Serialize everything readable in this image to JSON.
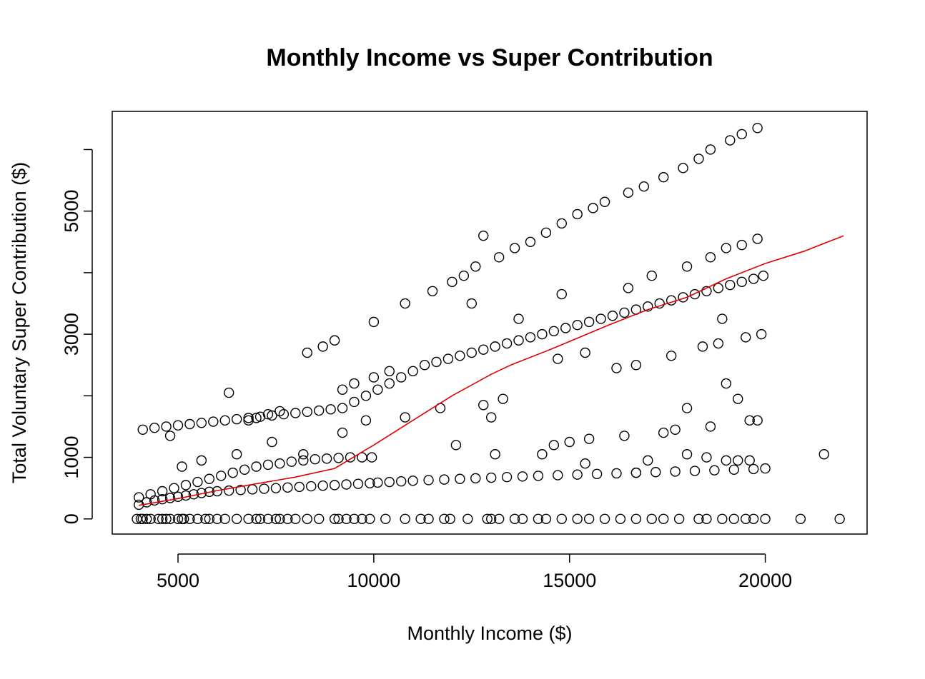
{
  "chart_data": {
    "type": "scatter",
    "title": "Monthly Income vs Super Contribution",
    "xlabel": "Monthly Income ($)",
    "ylabel": "Total Voluntary Super Contribution ($)",
    "xlim": [
      3320,
      22600
    ],
    "ylim": [
      -246,
      6620
    ],
    "x_ticks": [
      5000,
      10000,
      15000,
      20000
    ],
    "x_tick_labels": [
      "5000",
      "10000",
      "15000",
      "20000"
    ],
    "y_ticks": [
      0,
      1000,
      2000,
      3000,
      4000,
      5000,
      6000
    ],
    "y_tick_labels": [
      "0",
      "1000",
      "",
      "3000",
      "",
      "5000",
      ""
    ],
    "grid": false,
    "legend": "none",
    "point_color": "#000000",
    "trend_color": "#e00000",
    "series": [
      {
        "name": "",
        "marker": "open-circle",
        "points": [
          [
            3950,
            0
          ],
          [
            4050,
            0
          ],
          [
            4100,
            0
          ],
          [
            4200,
            0
          ],
          [
            4300,
            0
          ],
          [
            4500,
            0
          ],
          [
            4600,
            0
          ],
          [
            4700,
            0
          ],
          [
            4800,
            0
          ],
          [
            5000,
            0
          ],
          [
            5100,
            0
          ],
          [
            5150,
            0
          ],
          [
            5300,
            0
          ],
          [
            5500,
            0
          ],
          [
            5700,
            0
          ],
          [
            5800,
            0
          ],
          [
            6000,
            0
          ],
          [
            6200,
            0
          ],
          [
            6500,
            0
          ],
          [
            6800,
            0
          ],
          [
            7000,
            0
          ],
          [
            7100,
            0
          ],
          [
            7300,
            0
          ],
          [
            7500,
            0
          ],
          [
            7600,
            0
          ],
          [
            7800,
            0
          ],
          [
            8000,
            0
          ],
          [
            8300,
            0
          ],
          [
            8600,
            0
          ],
          [
            9000,
            0
          ],
          [
            9100,
            0
          ],
          [
            9300,
            0
          ],
          [
            9500,
            0
          ],
          [
            9700,
            0
          ],
          [
            9900,
            0
          ],
          [
            10300,
            0
          ],
          [
            10800,
            0
          ],
          [
            11200,
            0
          ],
          [
            11400,
            0
          ],
          [
            11800,
            0
          ],
          [
            11950,
            0
          ],
          [
            12400,
            0
          ],
          [
            12900,
            0
          ],
          [
            13000,
            0
          ],
          [
            13200,
            0
          ],
          [
            13600,
            0
          ],
          [
            13800,
            0
          ],
          [
            14200,
            0
          ],
          [
            14400,
            0
          ],
          [
            14800,
            0
          ],
          [
            15200,
            0
          ],
          [
            15500,
            0
          ],
          [
            15900,
            0
          ],
          [
            16300,
            0
          ],
          [
            16700,
            0
          ],
          [
            17100,
            0
          ],
          [
            17400,
            0
          ],
          [
            17800,
            0
          ],
          [
            18300,
            0
          ],
          [
            18500,
            0
          ],
          [
            18900,
            0
          ],
          [
            19200,
            0
          ],
          [
            19500,
            0
          ],
          [
            19700,
            0
          ],
          [
            20000,
            0
          ],
          [
            20900,
            0
          ],
          [
            21900,
            0
          ],
          [
            4000,
            230
          ],
          [
            4200,
            270
          ],
          [
            4400,
            300
          ],
          [
            4600,
            320
          ],
          [
            4800,
            340
          ],
          [
            5000,
            360
          ],
          [
            5200,
            380
          ],
          [
            5400,
            400
          ],
          [
            5600,
            420
          ],
          [
            5800,
            440
          ],
          [
            6000,
            450
          ],
          [
            6300,
            460
          ],
          [
            6600,
            470
          ],
          [
            6900,
            480
          ],
          [
            7200,
            490
          ],
          [
            7500,
            500
          ],
          [
            7800,
            510
          ],
          [
            8100,
            520
          ],
          [
            8400,
            530
          ],
          [
            8700,
            540
          ],
          [
            9000,
            550
          ],
          [
            9300,
            560
          ],
          [
            9600,
            570
          ],
          [
            9900,
            580
          ],
          [
            10100,
            590
          ],
          [
            10400,
            600
          ],
          [
            10700,
            610
          ],
          [
            11000,
            620
          ],
          [
            11400,
            630
          ],
          [
            11800,
            640
          ],
          [
            12200,
            650
          ],
          [
            12600,
            660
          ],
          [
            13000,
            670
          ],
          [
            13400,
            680
          ],
          [
            13800,
            690
          ],
          [
            14200,
            700
          ],
          [
            14700,
            710
          ],
          [
            15200,
            720
          ],
          [
            15700,
            730
          ],
          [
            16200,
            740
          ],
          [
            16700,
            750
          ],
          [
            17200,
            760
          ],
          [
            17700,
            770
          ],
          [
            18200,
            780
          ],
          [
            18700,
            790
          ],
          [
            19200,
            800
          ],
          [
            19700,
            810
          ],
          [
            20000,
            820
          ],
          [
            4000,
            350
          ],
          [
            4300,
            400
          ],
          [
            4600,
            450
          ],
          [
            4900,
            500
          ],
          [
            5200,
            550
          ],
          [
            5500,
            600
          ],
          [
            5800,
            650
          ],
          [
            6100,
            700
          ],
          [
            6400,
            750
          ],
          [
            6700,
            800
          ],
          [
            7000,
            850
          ],
          [
            7300,
            880
          ],
          [
            7600,
            900
          ],
          [
            7900,
            930
          ],
          [
            8200,
            950
          ],
          [
            8500,
            970
          ],
          [
            8800,
            980
          ],
          [
            9100,
            990
          ],
          [
            9400,
            1000
          ],
          [
            9700,
            1000
          ],
          [
            9950,
            1000
          ],
          [
            4100,
            1450
          ],
          [
            4400,
            1480
          ],
          [
            4700,
            1500
          ],
          [
            5000,
            1520
          ],
          [
            5300,
            1540
          ],
          [
            5600,
            1560
          ],
          [
            5900,
            1580
          ],
          [
            6200,
            1600
          ],
          [
            6500,
            1620
          ],
          [
            6800,
            1640
          ],
          [
            7100,
            1660
          ],
          [
            7400,
            1680
          ],
          [
            7700,
            1700
          ],
          [
            8000,
            1720
          ],
          [
            8300,
            1740
          ],
          [
            8600,
            1760
          ],
          [
            8900,
            1780
          ],
          [
            9200,
            1800
          ],
          [
            9500,
            1900
          ],
          [
            9800,
            2000
          ],
          [
            10100,
            2100
          ],
          [
            10400,
            2200
          ],
          [
            10700,
            2300
          ],
          [
            11000,
            2400
          ],
          [
            11300,
            2500
          ],
          [
            11600,
            2550
          ],
          [
            11900,
            2600
          ],
          [
            12200,
            2650
          ],
          [
            12500,
            2700
          ],
          [
            12800,
            2750
          ],
          [
            13100,
            2800
          ],
          [
            13400,
            2850
          ],
          [
            13700,
            2900
          ],
          [
            14000,
            2950
          ],
          [
            14300,
            3000
          ],
          [
            14600,
            3050
          ],
          [
            14900,
            3100
          ],
          [
            15200,
            3150
          ],
          [
            15500,
            3200
          ],
          [
            15800,
            3250
          ],
          [
            16100,
            3300
          ],
          [
            16400,
            3350
          ],
          [
            16700,
            3400
          ],
          [
            17000,
            3450
          ],
          [
            17300,
            3500
          ],
          [
            17600,
            3550
          ],
          [
            17900,
            3600
          ],
          [
            18200,
            3650
          ],
          [
            18500,
            3700
          ],
          [
            18800,
            3750
          ],
          [
            19100,
            3800
          ],
          [
            19400,
            3850
          ],
          [
            19700,
            3900
          ],
          [
            19950,
            3950
          ],
          [
            6800,
            1600
          ],
          [
            7000,
            1640
          ],
          [
            7300,
            1700
          ],
          [
            7600,
            1750
          ],
          [
            8300,
            2700
          ],
          [
            8700,
            2800
          ],
          [
            9000,
            2900
          ],
          [
            9200,
            2100
          ],
          [
            9500,
            2200
          ],
          [
            10000,
            2300
          ],
          [
            10400,
            2400
          ],
          [
            10800,
            3500
          ],
          [
            11500,
            3700
          ],
          [
            12000,
            3850
          ],
          [
            12300,
            3950
          ],
          [
            12600,
            4100
          ],
          [
            12800,
            4600
          ],
          [
            13200,
            4250
          ],
          [
            13600,
            4400
          ],
          [
            14000,
            4500
          ],
          [
            14400,
            4650
          ],
          [
            14800,
            4800
          ],
          [
            15200,
            4950
          ],
          [
            15600,
            5050
          ],
          [
            15900,
            5150
          ],
          [
            16500,
            5300
          ],
          [
            16900,
            5400
          ],
          [
            17400,
            5550
          ],
          [
            17900,
            5700
          ],
          [
            18300,
            5850
          ],
          [
            18600,
            6000
          ],
          [
            19100,
            6150
          ],
          [
            19400,
            6250
          ],
          [
            19800,
            6350
          ],
          [
            9200,
            1400
          ],
          [
            9800,
            1600
          ],
          [
            10800,
            1650
          ],
          [
            11700,
            1800
          ],
          [
            12100,
            1200
          ],
          [
            12800,
            1850
          ],
          [
            13000,
            1650
          ],
          [
            13300,
            1950
          ],
          [
            14300,
            1050
          ],
          [
            14600,
            1200
          ],
          [
            15000,
            1250
          ],
          [
            15500,
            1300
          ],
          [
            16400,
            1350
          ],
          [
            17400,
            1400
          ],
          [
            17700,
            1450
          ],
          [
            18000,
            1800
          ],
          [
            18600,
            1500
          ],
          [
            19600,
            1600
          ],
          [
            19800,
            1600
          ],
          [
            13100,
            1050
          ],
          [
            15400,
            900
          ],
          [
            16700,
            750
          ],
          [
            17000,
            950
          ],
          [
            18000,
            1050
          ],
          [
            18500,
            1000
          ],
          [
            19000,
            950
          ],
          [
            19300,
            950
          ],
          [
            19600,
            950
          ],
          [
            10000,
            3200
          ],
          [
            12500,
            3500
          ],
          [
            13700,
            3250
          ],
          [
            14700,
            2600
          ],
          [
            15400,
            2700
          ],
          [
            16200,
            2450
          ],
          [
            16700,
            2500
          ],
          [
            17600,
            2650
          ],
          [
            18400,
            2800
          ],
          [
            18800,
            2850
          ],
          [
            18900,
            3250
          ],
          [
            19000,
            2200
          ],
          [
            19300,
            1950
          ],
          [
            19500,
            2950
          ],
          [
            19900,
            3000
          ],
          [
            14800,
            3650
          ],
          [
            16500,
            3750
          ],
          [
            17100,
            3950
          ],
          [
            18000,
            4100
          ],
          [
            18600,
            4250
          ],
          [
            19000,
            4400
          ],
          [
            19400,
            4450
          ],
          [
            19800,
            4550
          ],
          [
            4800,
            1350
          ],
          [
            6300,
            2050
          ],
          [
            5100,
            850
          ],
          [
            5600,
            950
          ],
          [
            6500,
            1050
          ],
          [
            7400,
            1250
          ],
          [
            8200,
            1050
          ],
          [
            21500,
            1050
          ]
        ]
      }
    ],
    "trend_line": [
      [
        4000,
        220
      ],
      [
        5000,
        330
      ],
      [
        6000,
        460
      ],
      [
        7000,
        570
      ],
      [
        8000,
        680
      ],
      [
        9000,
        820
      ],
      [
        10000,
        1200
      ],
      [
        11000,
        1600
      ],
      [
        12000,
        2000
      ],
      [
        13000,
        2350
      ],
      [
        13500,
        2500
      ],
      [
        14500,
        2750
      ],
      [
        16000,
        3150
      ],
      [
        17000,
        3400
      ],
      [
        18000,
        3600
      ],
      [
        19000,
        3900
      ],
      [
        20000,
        4150
      ],
      [
        21000,
        4350
      ],
      [
        22000,
        4600
      ]
    ]
  }
}
